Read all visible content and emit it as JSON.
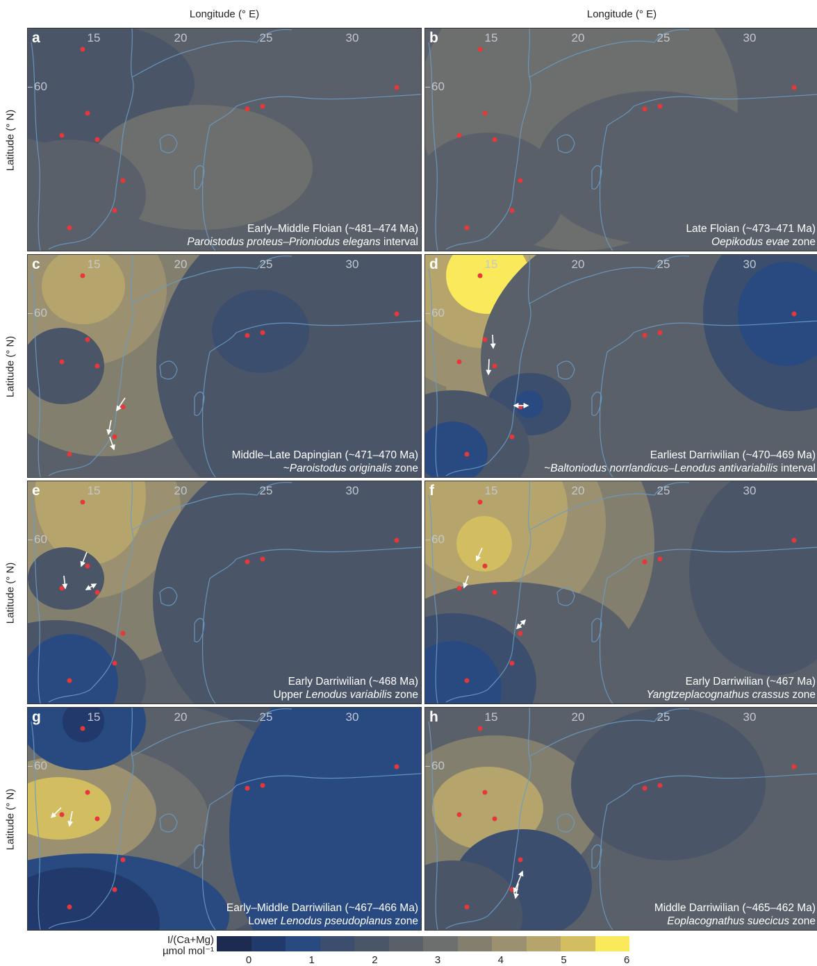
{
  "axes": {
    "x_title": "Longitude (° E)",
    "y_title": "Latitude (° N)",
    "lon_ticks": [
      "15",
      "20",
      "25",
      "30"
    ],
    "lat_tick": "60"
  },
  "panels": [
    {
      "letter": "a",
      "line1": "Early–Middle Floian (~481–474 Ma)",
      "line2_italic": "Paroistodus proteus–Prioniodus elegans",
      "line2_rest": " interval"
    },
    {
      "letter": "b",
      "line1": "Late Floian (~473–471 Ma)",
      "line2_italic": "Oepikodus evae",
      "line2_rest": " zone"
    },
    {
      "letter": "c",
      "line1": "Middle–Late Dapingian (~471–470 Ma)",
      "line2_pre": "~",
      "line2_italic": "Paroistodus originalis",
      "line2_rest": " zone"
    },
    {
      "letter": "d",
      "line1": "Earliest Darriwilian (~470–469 Ma)",
      "line2_pre": "~",
      "line2_italic": "Baltoniodus norrlandicus–Lenodus antivariabilis",
      "line2_rest": " interval"
    },
    {
      "letter": "e",
      "line1": "Early Darriwilian (~468 Ma)",
      "line2_pre": "Upper ",
      "line2_italic": "Lenodus variabilis",
      "line2_rest": " zone"
    },
    {
      "letter": "f",
      "line1": "Early Darriwilian (~467 Ma)",
      "line2_italic": "Yangtzeplacognathus crassus",
      "line2_rest": " zone"
    },
    {
      "letter": "g",
      "line1": "Early–Middle Darriwilian (~467–466 Ma)",
      "line2_pre": "Lower ",
      "line2_italic": "Lenodus pseudoplanus",
      "line2_rest": " zone"
    },
    {
      "letter": "h",
      "line1": "Middle Darriwilian (~465–462 Ma)",
      "line2_italic": "Eoplacognathus suecicus",
      "line2_rest": " zone"
    }
  ],
  "colorbar": {
    "label_line1": "I/(Ca+Mg)",
    "label_line2": "µmol mol⁻¹",
    "ticks": [
      "0",
      "1",
      "2",
      "3",
      "4",
      "5",
      "6"
    ],
    "colors": [
      "#1c2b4f",
      "#213a6b",
      "#284a80",
      "#3c4e6e",
      "#4b5568",
      "#5a6069",
      "#6c6f6e",
      "#837f6f",
      "#9b9170",
      "#b5a56c",
      "#d2be60",
      "#fae95a"
    ]
  },
  "colors": {
    "coastline": "#6a9bc4",
    "site_marker": "#e8373a",
    "arrow": "#ffffff"
  }
}
